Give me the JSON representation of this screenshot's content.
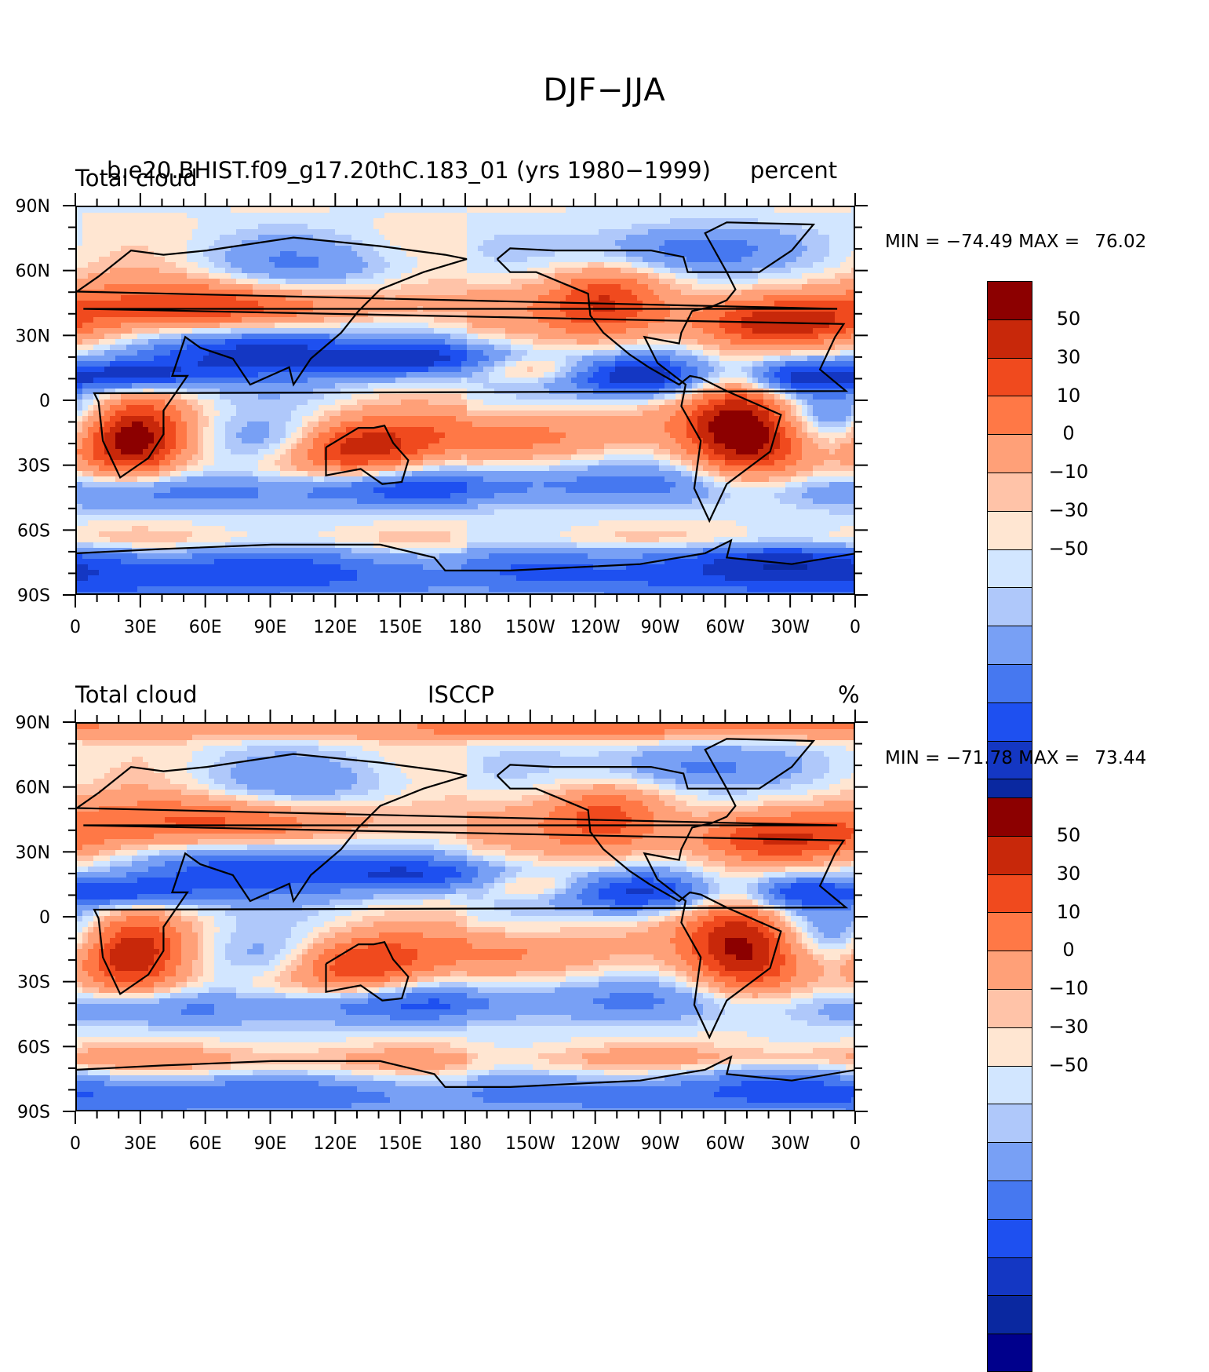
{
  "title": "DJF−JJA",
  "colors": {
    "levels": [
      "#00008c",
      "#0a28a0",
      "#1437c3",
      "#1e50f0",
      "#4678f0",
      "#78a0f5",
      "#afc8fa",
      "#d2e6ff",
      "#ffe6d2",
      "#ffc3a8",
      "#ffa078",
      "#ff7846",
      "#f04a1e",
      "#c8280a",
      "#8c0000"
    ]
  },
  "colorbar_labels": [
    "50",
    "30",
    "10",
    "0",
    "−10",
    "−30",
    "−50"
  ],
  "lat_labels": [
    "90N",
    "60N",
    "30N",
    "0",
    "30S",
    "60S",
    "90S"
  ],
  "lon_labels": [
    "0",
    "30E",
    "60E",
    "90E",
    "120E",
    "150E",
    "180",
    "150W",
    "120W",
    "90W",
    "60W",
    "30W",
    "0"
  ],
  "panels": [
    {
      "left": "Total cloud",
      "center": "b.e20.BHIST.f09_g17.20thC.183_01 (yrs 1980−1999)",
      "right": "percent",
      "min_label": "MIN = ",
      "min": "−74.49",
      "max_label": " MAX = ",
      "max": "76.02"
    },
    {
      "left": "Total cloud",
      "center": "ISCCP",
      "right": "%",
      "min_label": "MIN = ",
      "min": "−71.78",
      "max_label": " MAX = ",
      "max": "73.44"
    }
  ]
}
